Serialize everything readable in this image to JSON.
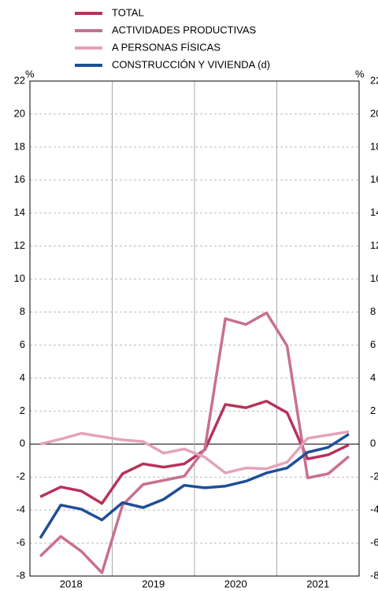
{
  "chart_data": {
    "type": "line",
    "unit_left": "%",
    "unit_right": "%",
    "categories": [
      null,
      null,
      null,
      null,
      null,
      null,
      null,
      null,
      null,
      null,
      null,
      null,
      null,
      null,
      null,
      null
    ],
    "groups": [
      "2018",
      "2019",
      "2020",
      "2021"
    ],
    "series": [
      {
        "name": "TOTAL",
        "color": "#b5335a",
        "values": [
          -3.2,
          -2.6,
          -2.85,
          -3.6,
          -1.8,
          -1.2,
          -1.4,
          -1.2,
          -0.35,
          2.4,
          2.2,
          2.6,
          1.9,
          -0.9,
          -0.65,
          -0.05
        ]
      },
      {
        "name": "ACTIVIDADES PRODUCTIVAS",
        "color": "#c9708f",
        "values": [
          -6.8,
          -5.6,
          -6.5,
          -7.8,
          -3.7,
          -2.45,
          -2.2,
          -1.95,
          -0.3,
          7.6,
          7.25,
          7.95,
          5.95,
          -2.05,
          -1.8,
          -0.75
        ]
      },
      {
        "name": "A PERSONAS FÍSICAS",
        "color": "#e4a3b8",
        "values": [
          0,
          0.3,
          0.65,
          0.45,
          0.25,
          0.15,
          -0.55,
          -0.3,
          -0.8,
          -1.75,
          -1.45,
          -1.5,
          -1.1,
          0.35,
          0.55,
          0.75
        ]
      },
      {
        "name": "CONSTRUCCIÓN Y VIVIENDA (d)",
        "color": "#1f4e97",
        "axis": "y2",
        "values": [
          -5.7,
          -3.7,
          -3.95,
          -4.6,
          -3.55,
          -3.85,
          -3.35,
          -2.5,
          -2.65,
          -2.55,
          -2.25,
          -1.75,
          -1.45,
          -0.5,
          -0.2,
          0.6
        ]
      }
    ],
    "ylim": [
      -8,
      22
    ],
    "yticks": [
      -8,
      -6,
      -4,
      -2,
      0,
      2,
      4,
      6,
      8,
      10,
      12,
      14,
      16,
      18,
      20,
      22
    ],
    "y2lim": [
      -8,
      22
    ],
    "y2ticks": [
      -8,
      -6,
      -4,
      -2,
      0,
      2,
      4,
      6,
      8,
      10,
      12,
      14,
      16,
      18,
      20,
      22
    ],
    "grid": true
  }
}
